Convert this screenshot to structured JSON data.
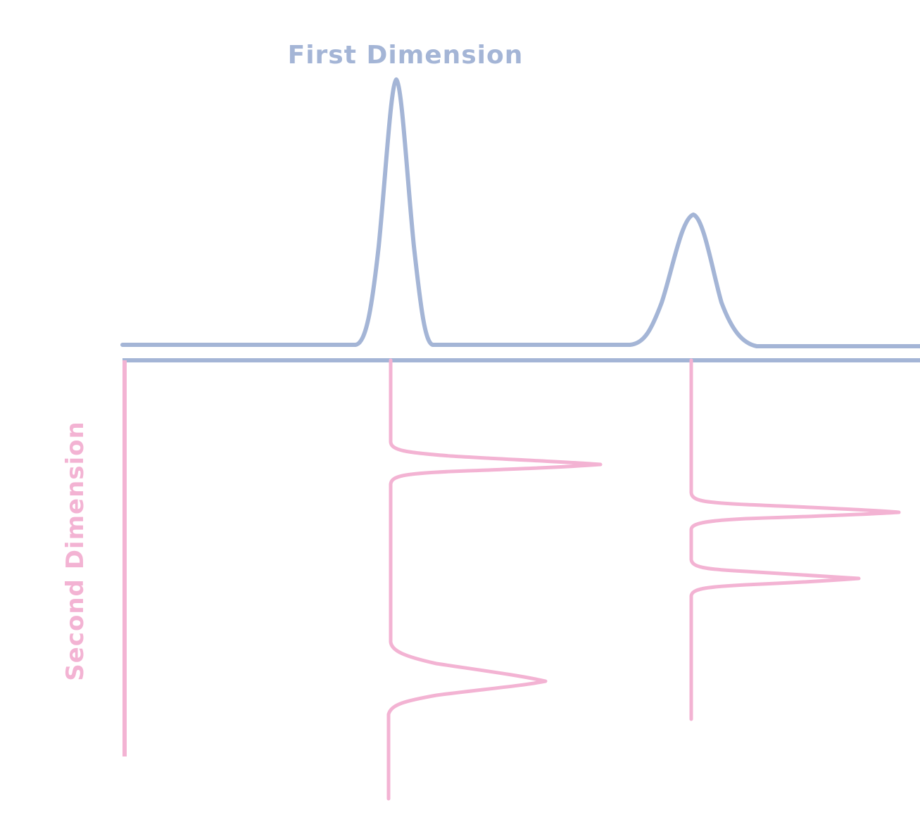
{
  "diagram": {
    "first_dimension_label": "First Dimension",
    "second_dimension_label": "Second Dimension"
  },
  "colors": {
    "first_dimension": "#a4b5d6",
    "second_dimension": "#f3b3d3",
    "background": "#ffffff"
  }
}
